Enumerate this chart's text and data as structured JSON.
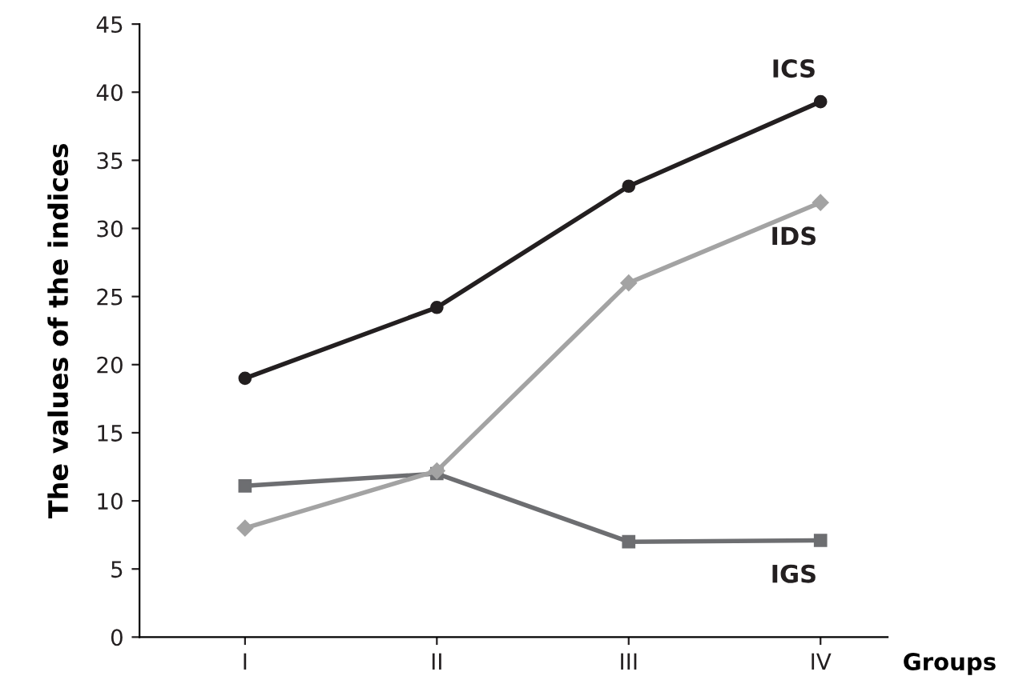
{
  "chart_data": {
    "type": "line",
    "xlabel": "Groups",
    "ylabel": "The values of the indices",
    "categories": [
      "I",
      "II",
      "III",
      "IV"
    ],
    "ylim": [
      0,
      45
    ],
    "yticks": [
      0,
      5,
      10,
      15,
      20,
      25,
      30,
      35,
      40,
      45
    ],
    "grid": false,
    "legend": false,
    "series": [
      {
        "name": "ICS",
        "color": "#231f20",
        "marker": "circle",
        "values": [
          19,
          24.2,
          33.1,
          39.3
        ]
      },
      {
        "name": "IDS",
        "color": "#a3a3a3",
        "marker": "diamond",
        "values": [
          8,
          12.2,
          26,
          31.9
        ]
      },
      {
        "name": "IGS",
        "color": "#6d6e71",
        "marker": "square",
        "values": [
          11.1,
          12,
          7,
          7.1
        ]
      }
    ]
  }
}
